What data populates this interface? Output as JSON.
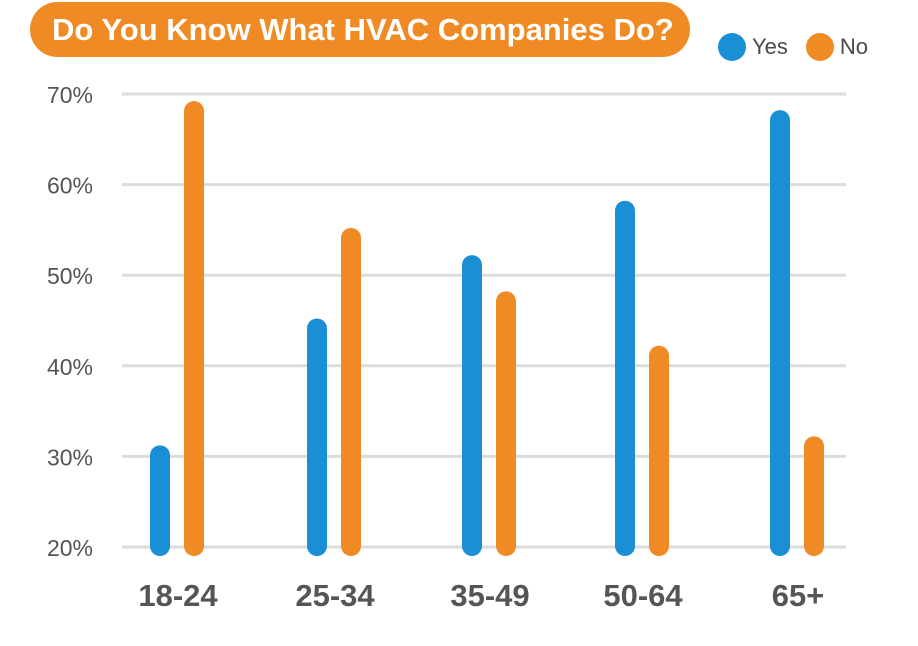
{
  "title": "Do You Know What HVAC Companies Do?",
  "legend": [
    {
      "label": "Yes",
      "color": "#1a8fd6"
    },
    {
      "label": "No",
      "color": "#f08a24"
    }
  ],
  "chart_data": {
    "type": "bar",
    "title": "Do You Know What HVAC Companies Do?",
    "categories": [
      "18-24",
      "25-34",
      "35-49",
      "50-64",
      "65+"
    ],
    "series": [
      {
        "name": "Yes",
        "color": "#1a8fd6",
        "values": [
          31,
          45,
          52,
          58,
          68
        ]
      },
      {
        "name": "No",
        "color": "#f08a24",
        "values": [
          69,
          55,
          48,
          42,
          32
        ]
      }
    ],
    "ylim": [
      20,
      70
    ],
    "yticks": [
      20,
      30,
      40,
      50,
      60,
      70
    ],
    "ytick_labels": [
      "20%",
      "30%",
      "40%",
      "50%",
      "60%",
      "70%"
    ],
    "grid": true,
    "legend_position": "top-right"
  }
}
